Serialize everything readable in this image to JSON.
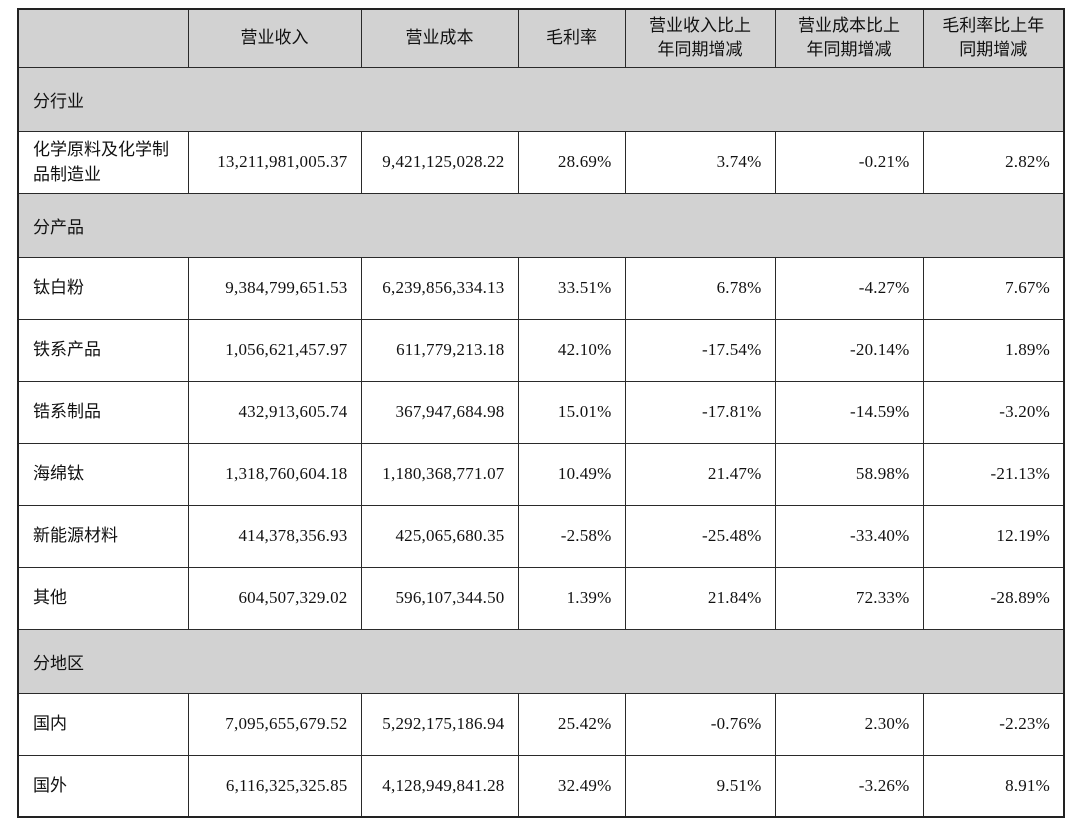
{
  "colors": {
    "section_header_bg": "#d2d2d2",
    "table_border": "#2a2a2a",
    "text": "#111111",
    "page_bg": "#ffffff"
  },
  "table": {
    "columns": [
      "",
      "营业收入",
      "营业成本",
      "毛利率",
      "营业收入比上\n年同期增减",
      "营业成本比上\n年同期增减",
      "毛利率比上年\n同期增减"
    ],
    "sections": [
      {
        "label": "分行业",
        "rows": [
          {
            "name": "化学原料及化学制品制造业",
            "values": [
              "13,211,981,005.37",
              "9,421,125,028.22",
              "28.69%",
              "3.74%",
              "-0.21%",
              "2.82%"
            ]
          }
        ]
      },
      {
        "label": "分产品",
        "rows": [
          {
            "name": "钛白粉",
            "values": [
              "9,384,799,651.53",
              "6,239,856,334.13",
              "33.51%",
              "6.78%",
              "-4.27%",
              "7.67%"
            ]
          },
          {
            "name": "铁系产品",
            "values": [
              "1,056,621,457.97",
              "611,779,213.18",
              "42.10%",
              "-17.54%",
              "-20.14%",
              "1.89%"
            ]
          },
          {
            "name": "锆系制品",
            "values": [
              "432,913,605.74",
              "367,947,684.98",
              "15.01%",
              "-17.81%",
              "-14.59%",
              "-3.20%"
            ]
          },
          {
            "name": "海绵钛",
            "values": [
              "1,318,760,604.18",
              "1,180,368,771.07",
              "10.49%",
              "21.47%",
              "58.98%",
              "-21.13%"
            ]
          },
          {
            "name": "新能源材料",
            "values": [
              "414,378,356.93",
              "425,065,680.35",
              "-2.58%",
              "-25.48%",
              "-33.40%",
              "12.19%"
            ]
          },
          {
            "name": "其他",
            "values": [
              "604,507,329.02",
              "596,107,344.50",
              "1.39%",
              "21.84%",
              "72.33%",
              "-28.89%"
            ]
          }
        ]
      },
      {
        "label": "分地区",
        "rows": [
          {
            "name": "国内",
            "values": [
              "7,095,655,679.52",
              "5,292,175,186.94",
              "25.42%",
              "-0.76%",
              "2.30%",
              "-2.23%"
            ]
          },
          {
            "name": "国外",
            "values": [
              "6,116,325,325.85",
              "4,128,949,841.28",
              "32.49%",
              "9.51%",
              "-3.26%",
              "8.91%"
            ]
          }
        ]
      }
    ]
  }
}
